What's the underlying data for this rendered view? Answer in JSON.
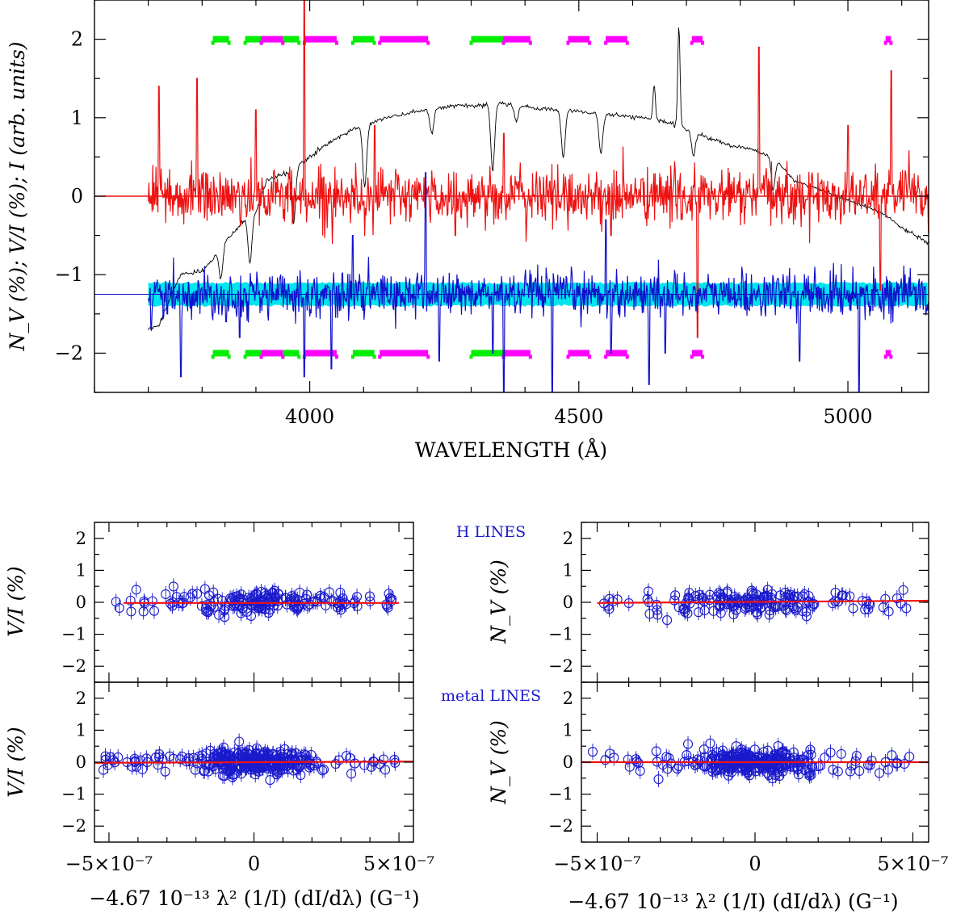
{
  "main": {
    "type": "line",
    "xlabel": "WAVELENGTH (Å)",
    "ylabel": "N_V (%); V/I (%); I (arb. units)",
    "xlim": [
      3600,
      5150
    ],
    "ylim": [
      -2.5,
      2.5
    ],
    "xticks": [
      4000,
      4500,
      5000
    ],
    "yticks": [
      -2,
      -1,
      0,
      1,
      2
    ],
    "colors": {
      "nv": "#ee1111",
      "vi": "#1111cc",
      "intensity": "#000000",
      "err": "#00e5ee",
      "h_band": "#ff00ff",
      "metal_band": "#00ee00"
    },
    "nv_zero_level": 0,
    "vi_zero_level": -1.25,
    "wavelength_range": [
      3700,
      5150
    ],
    "intensity_profile": [
      [
        3700,
        -1.7
      ],
      [
        3720,
        -1.65
      ],
      [
        3740,
        -1.3
      ],
      [
        3760,
        -1.0
      ],
      [
        3780,
        -0.98
      ],
      [
        3800,
        -0.95
      ],
      [
        3820,
        -0.8
      ],
      [
        3840,
        -0.6
      ],
      [
        3860,
        -0.45
      ],
      [
        3880,
        -0.3
      ],
      [
        3900,
        -0.2
      ],
      [
        3920,
        0.2
      ],
      [
        3940,
        0.25
      ],
      [
        3960,
        0.3
      ],
      [
        3980,
        0.4
      ],
      [
        4000,
        0.5
      ],
      [
        4040,
        0.7
      ],
      [
        4080,
        0.85
      ],
      [
        4100,
        0.9
      ],
      [
        4140,
        1.0
      ],
      [
        4180,
        1.05
      ],
      [
        4220,
        1.1
      ],
      [
        4260,
        1.15
      ],
      [
        4300,
        1.15
      ],
      [
        4340,
        1.18
      ],
      [
        4380,
        1.16
      ],
      [
        4420,
        1.12
      ],
      [
        4460,
        1.1
      ],
      [
        4500,
        1.08
      ],
      [
        4540,
        1.05
      ],
      [
        4580,
        1.02
      ],
      [
        4620,
        1.0
      ],
      [
        4660,
        0.95
      ],
      [
        4700,
        0.85
      ],
      [
        4740,
        0.75
      ],
      [
        4780,
        0.65
      ],
      [
        4820,
        0.6
      ],
      [
        4860,
        0.5
      ],
      [
        4900,
        0.2
      ],
      [
        4940,
        0.1
      ],
      [
        4980,
        0.0
      ],
      [
        5020,
        -0.1
      ],
      [
        5060,
        -0.2
      ],
      [
        5100,
        -0.4
      ],
      [
        5150,
        -0.6
      ]
    ],
    "absorption_lines": [
      [
        3835,
        0.4
      ],
      [
        3889,
        0.6
      ],
      [
        3970,
        0.7
      ],
      [
        4102,
        0.8
      ],
      [
        4227,
        0.3
      ],
      [
        4340,
        0.85
      ],
      [
        4384,
        0.2
      ],
      [
        4471,
        0.6
      ],
      [
        4541,
        0.5
      ],
      [
        4713,
        0.3
      ],
      [
        4861,
        0.4
      ]
    ],
    "emission_lines": [
      [
        4640,
        0.45
      ],
      [
        4686,
        1.3
      ]
    ],
    "vi_spikes": [
      [
        3705,
        -1.7
      ],
      [
        3735,
        -1.5
      ],
      [
        3760,
        -2.3
      ],
      [
        3845,
        -1.6
      ],
      [
        3870,
        -1.8
      ],
      [
        3990,
        -2.3
      ],
      [
        4040,
        -2.2
      ],
      [
        4240,
        -2.1
      ],
      [
        4340,
        -2.0
      ],
      [
        4360,
        -2.5
      ],
      [
        4450,
        -2.5
      ],
      [
        4560,
        -2.0
      ],
      [
        4630,
        -2.4
      ],
      [
        4660,
        -2.0
      ],
      [
        4910,
        -2.1
      ],
      [
        5020,
        -2.5
      ],
      [
        4215,
        0.3
      ],
      [
        4550,
        -0.3
      ],
      [
        4080,
        -0.5
      ]
    ],
    "nv_spikes": [
      [
        3720,
        1.4
      ],
      [
        3790,
        1.5
      ],
      [
        3900,
        1.1
      ],
      [
        3990,
        2.5
      ],
      [
        4120,
        0.9
      ],
      [
        4270,
        -0.5
      ],
      [
        4360,
        0.8
      ],
      [
        4560,
        -0.5
      ],
      [
        4720,
        -1.8
      ],
      [
        4835,
        1.9
      ],
      [
        5000,
        0.9
      ],
      [
        5060,
        -1.2
      ],
      [
        5080,
        1.6
      ]
    ],
    "metal_bands_top": [
      [
        3820,
        3850
      ],
      [
        3880,
        3910
      ],
      [
        3950,
        3980
      ],
      [
        4080,
        4120
      ],
      [
        4300,
        4360
      ]
    ],
    "h_bands_top": [
      [
        3910,
        3950
      ],
      [
        3990,
        4050
      ],
      [
        4130,
        4220
      ],
      [
        4360,
        4410
      ],
      [
        4480,
        4520
      ],
      [
        4550,
        4590
      ],
      [
        4710,
        4730
      ],
      [
        5070,
        5080
      ]
    ],
    "bands_top_level": 2,
    "bands_bottom_level": -2
  },
  "panels": {
    "x_tick_labels": [
      "−5×10⁻⁷",
      "0",
      "5×10⁻⁷"
    ],
    "xlabel": "−4.67 10⁻¹³ λ² (1/I) (dI/dλ) (G⁻¹)",
    "xlim": [
      -5.5e-07,
      5.5e-07
    ],
    "ylim": [
      -2.5,
      2.5
    ],
    "yticks": [
      -2,
      -1,
      0,
      1,
      2
    ],
    "h_lines_label": "H LINES",
    "metal_lines_label": "metal LINES",
    "ylabel_vi": "V/I (%)",
    "ylabel_nv": "N_V (%)",
    "h_vi_fit": [
      [
        -4.5e-07,
        -0.02
      ],
      [
        5e-07,
        -0.02
      ]
    ],
    "h_nv_fit": [
      [
        -5e-07,
        -0.02
      ],
      [
        5.5e-07,
        0.05
      ]
    ],
    "metal_vi_fit": [
      [
        -5.5e-07,
        -0.02
      ],
      [
        5.5e-07,
        0.02
      ]
    ],
    "metal_nv_fit": [
      [
        -5.5e-07,
        0.0
      ],
      [
        5.5e-07,
        0.0
      ]
    ]
  }
}
